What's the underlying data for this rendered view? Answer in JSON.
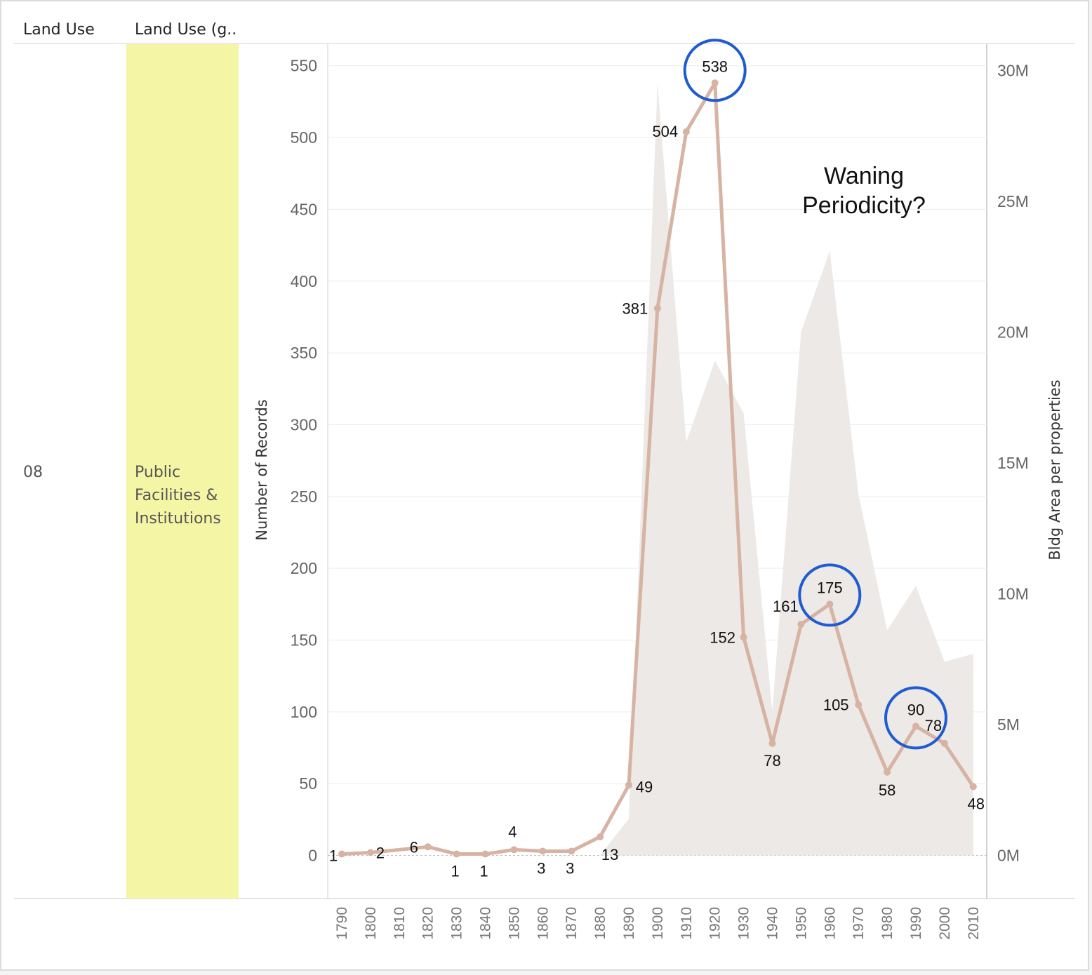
{
  "headers": {
    "col1": "Land Use",
    "col2": "Land Use (g.."
  },
  "row": {
    "code": "08",
    "name_lines": [
      "Public",
      "Facilities &",
      "Institutions"
    ],
    "highlight_color": "#f5f5a6"
  },
  "annotation_lines": [
    "Waning",
    "Periodicity?"
  ],
  "colors": {
    "line": "#d6b3a3",
    "area": "#ede9e7",
    "circle": "#1f5bd1"
  },
  "chart_data": {
    "type": "line",
    "x": [
      1790,
      1800,
      1810,
      1820,
      1830,
      1840,
      1850,
      1860,
      1870,
      1880,
      1890,
      1900,
      1910,
      1920,
      1930,
      1940,
      1950,
      1960,
      1970,
      1980,
      1990,
      2000,
      2010
    ],
    "series": [
      {
        "values": [
          1,
          2,
          null,
          6,
          1,
          1,
          4,
          3,
          3,
          13,
          49,
          381,
          504,
          538,
          152,
          78,
          161,
          175,
          105,
          58,
          90,
          78,
          48
        ],
        "labels": [
          "1",
          "2",
          "",
          "6",
          "1",
          "1",
          "4",
          "3",
          "3",
          "13",
          "49",
          "381",
          "504",
          "538",
          "152",
          "78",
          "161",
          "175",
          "105",
          "58",
          "90",
          "78",
          "48"
        ]
      },
      {
        "values": [
          0,
          0,
          0,
          0,
          0,
          0,
          0,
          0,
          0,
          0,
          1400000,
          29500000,
          15800000,
          18900000,
          16900000,
          5500000,
          20000000,
          23100000,
          13800000,
          8600000,
          10300000,
          7400000,
          7700000
        ]
      }
    ],
    "highlighted": [
      1920,
      1960,
      1990
    ],
    "ylabel": "Number of Records",
    "y2label": "Bldg Area per properties",
    "ylim": [
      -30,
      565
    ],
    "y2lim": [
      -1650000,
      31000000
    ],
    "yticks": [
      0,
      50,
      100,
      150,
      200,
      250,
      300,
      350,
      400,
      450,
      500,
      550
    ],
    "y2ticks": [
      "0M",
      "5M",
      "10M",
      "15M",
      "20M",
      "25M",
      "30M"
    ]
  }
}
